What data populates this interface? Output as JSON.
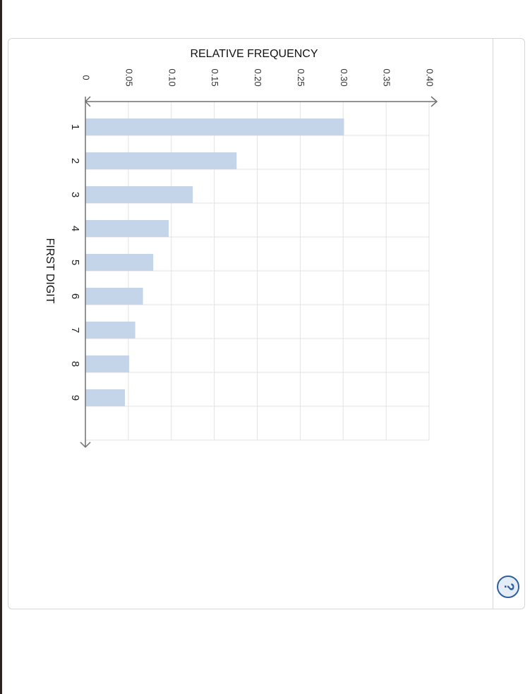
{
  "help": {
    "icon": "help-circle-icon",
    "glyph": "?"
  },
  "colors": {
    "bar": "#c4d5ea",
    "grid": "#e3e3e3",
    "axis": "#707070",
    "help": "#2f5f9e"
  },
  "chart_data": {
    "type": "bar",
    "orientation": "horizontal",
    "title": "",
    "xlabel": "FIRST DIGIT",
    "ylabel": "RELATIVE FREQUENCY",
    "categories": [
      "1",
      "2",
      "3",
      "4",
      "5",
      "6",
      "7",
      "8",
      "9"
    ],
    "values": [
      0.301,
      0.176,
      0.125,
      0.097,
      0.079,
      0.067,
      0.058,
      0.051,
      0.046
    ],
    "ylim": [
      0,
      0.4
    ],
    "yticks": [
      "0",
      "0.05",
      "0.10",
      "0.15",
      "0.20",
      "0.25",
      "0.30",
      "0.35",
      "0.40"
    ],
    "grid": true,
    "rotated_view": "90deg clockwise"
  }
}
